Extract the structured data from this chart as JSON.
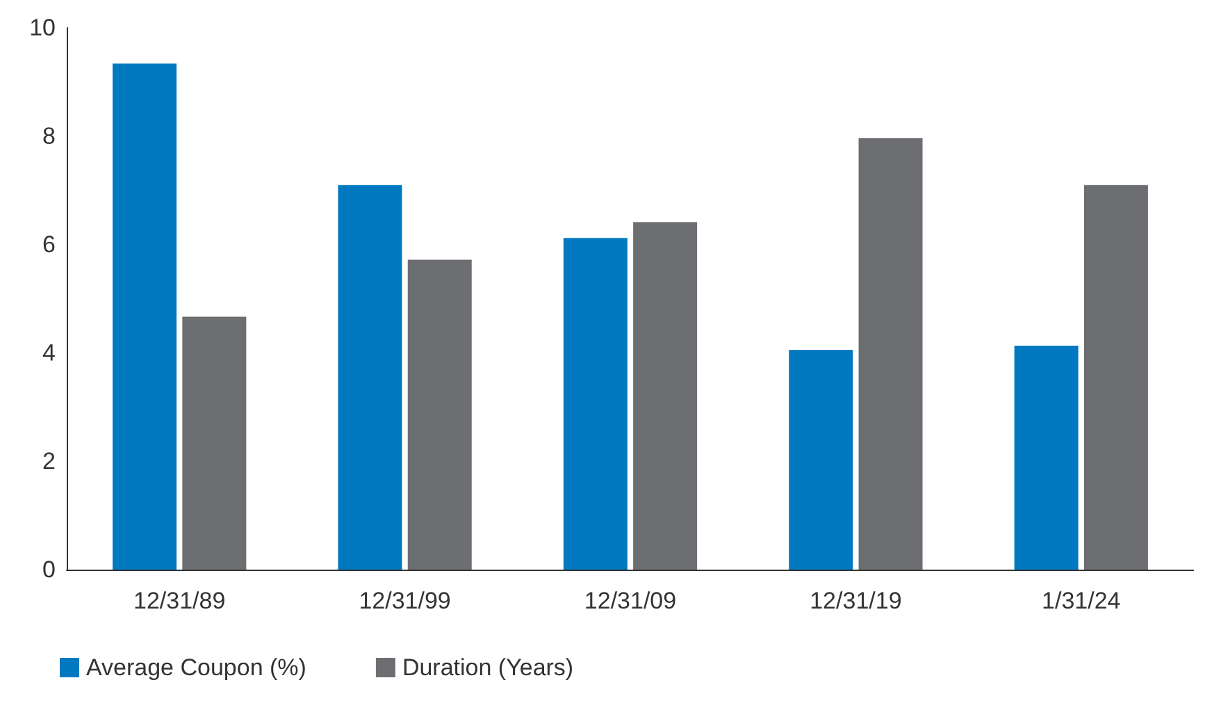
{
  "chart_data": {
    "type": "bar",
    "categories": [
      "12/31/89",
      "12/31/99",
      "12/31/09",
      "12/31/19",
      "1/31/24"
    ],
    "series": [
      {
        "name": "Average Coupon (%)",
        "color": "#0079c1",
        "values": [
          9.34,
          7.1,
          6.12,
          4.05,
          4.13
        ]
      },
      {
        "name": "Duration (Years)",
        "color": "#6d6e71",
        "values": [
          4.67,
          5.72,
          6.41,
          7.96,
          7.1
        ]
      }
    ],
    "ylim": [
      0,
      10
    ],
    "yticks": [
      0,
      2,
      4,
      6,
      8,
      10
    ],
    "grid": false,
    "legend": "bottom left"
  }
}
